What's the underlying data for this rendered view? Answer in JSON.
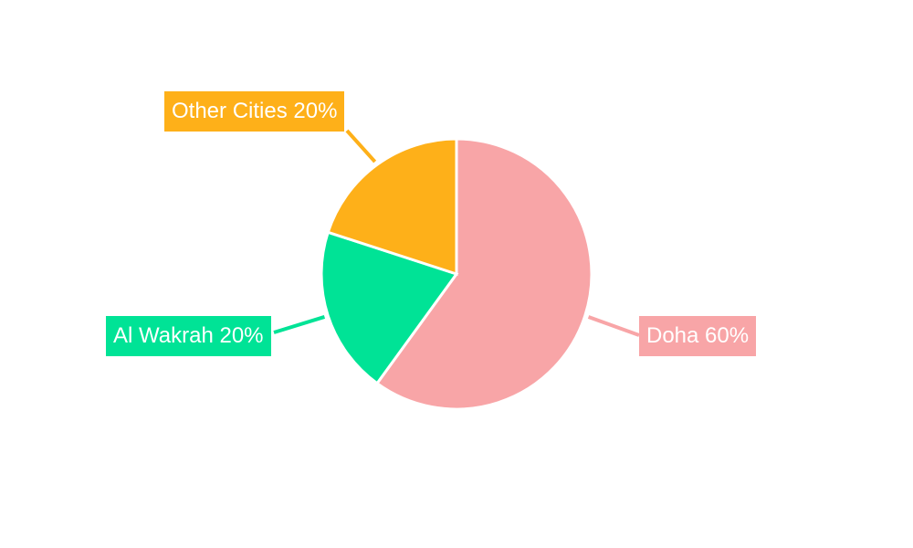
{
  "chart_data": {
    "type": "pie",
    "title": "",
    "categories": [
      "Doha",
      "Al Wakrah",
      "Other Cities"
    ],
    "values": [
      60,
      20,
      20
    ],
    "unit": "%",
    "colors": [
      "#F8A5A7",
      "#00E396",
      "#FEB019"
    ],
    "start_angle_deg": 0,
    "direction": "clockwise",
    "legend": "none",
    "labels": [
      {
        "text": "Doha 60%",
        "color": "#F8A5A7"
      },
      {
        "text": "Al Wakrah 20%",
        "color": "#00E396"
      },
      {
        "text": "Other Cities 20%",
        "color": "#FEB019"
      }
    ]
  }
}
